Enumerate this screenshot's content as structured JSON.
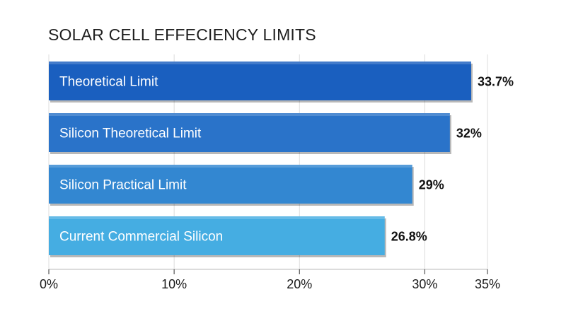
{
  "chart_data": {
    "type": "bar",
    "orientation": "horizontal",
    "title": "SOLAR CELL EFFECIENCY LIMITS",
    "categories": [
      "Theoretical Limit",
      "Silicon Theoretical Limit",
      "Silicon Practical Limit",
      "Current Commercial Silicon"
    ],
    "values": [
      33.7,
      32,
      29,
      26.8
    ],
    "value_labels": [
      "33.7%",
      "32%",
      "29%",
      "26.8%"
    ],
    "bar_colors": [
      "#1a5fbf",
      "#2a73c9",
      "#3387d1",
      "#45ade2"
    ],
    "xlim": [
      0,
      35
    ],
    "xticks": [
      0,
      10,
      20,
      30,
      35
    ],
    "xtick_labels": [
      "0%",
      "10%",
      "20%",
      "30%",
      "35%"
    ],
    "grid": "vertical lines at ticks",
    "legend": "none"
  }
}
